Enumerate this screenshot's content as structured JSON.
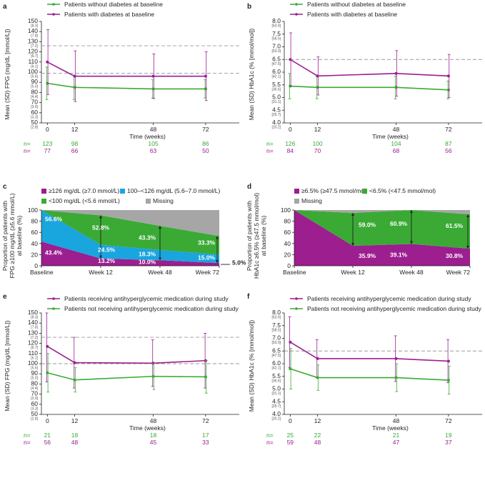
{
  "colors": {
    "green": "#3aaa35",
    "purple": "#9c1e8f",
    "blue": "#19a5de",
    "grey": "#a6a6a6",
    "dash": "#9a9a9a"
  },
  "chart_data": [
    {
      "panel": "a",
      "type": "line",
      "ylabel": "Mean (SD) FPG (mg/dL [mmol/L])",
      "xlabel": "Time (weeks)",
      "x": [
        0,
        12,
        48,
        72
      ],
      "ylim": [
        50,
        150
      ],
      "yticks": [
        50,
        60,
        70,
        80,
        90,
        100,
        110,
        120,
        130,
        140,
        150
      ],
      "ysub": [
        "[2.8]",
        "[3.3]",
        "[3.9]",
        "[4.4]",
        "[5.0]",
        "[5.6]",
        "[6.1]",
        "[6.7]",
        "[7.2]",
        "[7.8]",
        "[8.3]"
      ],
      "ref_lines": [
        126,
        99
      ],
      "series": [
        {
          "name": "Patients without diabetes at baseline",
          "color": "green",
          "values": [
            89,
            85,
            83.5,
            83.5
          ],
          "sd": [
            16,
            12,
            9,
            9
          ],
          "n_values": [
            "123",
            "98",
            "105",
            "86"
          ]
        },
        {
          "name": "Patients with diabetes at baseline",
          "color": "purple",
          "values": [
            110,
            96,
            96,
            96
          ],
          "sd": [
            32,
            25,
            22,
            24
          ],
          "n_values": [
            "77",
            "66",
            "63",
            "50"
          ]
        }
      ],
      "n_label": "n="
    },
    {
      "panel": "b",
      "type": "line",
      "ylabel": "Mean (SD) HbA1c (% [mmol/mol])",
      "xlabel": "Time (weeks)",
      "x": [
        0,
        12,
        48,
        72
      ],
      "ylim": [
        4.0,
        8.0
      ],
      "yticks": [
        4.0,
        4.5,
        5.0,
        5.5,
        6.0,
        6.5,
        7.0,
        7.5,
        8.0
      ],
      "ysub": [
        "[20.2]",
        "[25.7]",
        "[31.1]",
        "[36.6]",
        "[42.1]",
        "[47.5]",
        "[53.0]",
        "[58.5]",
        "[63.9]"
      ],
      "ref_lines": [
        6.5
      ],
      "series": [
        {
          "name": "Patients without diabetes at baseline",
          "color": "green",
          "values": [
            5.45,
            5.4,
            5.4,
            5.3
          ],
          "sd": [
            0.5,
            0.45,
            0.45,
            0.35
          ],
          "n_values": [
            "126",
            "100",
            "104",
            "87"
          ]
        },
        {
          "name": "Patients with diabetes at baseline",
          "color": "purple",
          "values": [
            6.5,
            5.85,
            5.95,
            5.85
          ],
          "sd": [
            1.05,
            0.75,
            0.9,
            0.85
          ],
          "n_values": [
            "84",
            "70",
            "68",
            "56"
          ]
        }
      ],
      "n_label": "n="
    },
    {
      "panel": "c",
      "type": "area",
      "ylabel": "Proportion of patients with FPG ≥100 mg/dL (≥5.6 mmol/L) at baseline (%)",
      "categories": [
        "Baseline",
        "Week 12",
        "Week 48",
        "Week 72"
      ],
      "ylim": [
        0,
        100
      ],
      "yticks": [
        0,
        20,
        40,
        60,
        80,
        100
      ],
      "series": [
        {
          "name": "≥126 mg/dL (≥7.0 mmol/L)",
          "color": "purple",
          "values": [
            43.4,
            13.2,
            10.0,
            5.0
          ]
        },
        {
          "name": "100–<126 mg/dL (5.6–7.0 mmol/L)",
          "color": "blue",
          "values": [
            56.6,
            24.5,
            18.3,
            15.0
          ]
        },
        {
          "name": "<100 mg/dL (<5.6 mmol/L)",
          "color": "green",
          "values": [
            0,
            52.8,
            43.3,
            33.3
          ]
        },
        {
          "name": "Missing",
          "color": "grey",
          "values": [
            0,
            9.5,
            28.4,
            46.7
          ]
        }
      ],
      "labels": {
        "purple": [
          "43.4%",
          "13.2%",
          "10.0%",
          "5.0%"
        ],
        "blue": [
          "56.6%",
          "24.5%",
          "18.3%",
          "15.0%"
        ],
        "green": [
          "52.8%",
          "43.3%",
          "33.3%"
        ]
      }
    },
    {
      "panel": "d",
      "type": "area",
      "ylabel": "Proportion of patients with HbA1c ≥6.5% (≥47.5 mmol/mol) at baseline (%)",
      "categories": [
        "Baseline",
        "Week 12",
        "Week 48",
        "Week 72"
      ],
      "ylim": [
        0,
        100
      ],
      "yticks": [
        0,
        20,
        40,
        60,
        80,
        100
      ],
      "series": [
        {
          "name": "≥6.5% (≥47.5 mmol/mol)",
          "color": "purple",
          "values": [
            100,
            35.9,
            39.1,
            30.8
          ]
        },
        {
          "name": "<6.5% (<47.5 mmol/mol)",
          "color": "green",
          "values": [
            0,
            59.0,
            60.9,
            61.5
          ]
        },
        {
          "name": "Missing",
          "color": "grey",
          "values": [
            0,
            5.1,
            0,
            7.7
          ]
        }
      ],
      "labels": {
        "purple": [
          "35.9%",
          "39.1%",
          "30.8%"
        ],
        "green": [
          "59.0%",
          "60.9%",
          "61.5%"
        ]
      }
    },
    {
      "panel": "e",
      "type": "line",
      "ylabel": "Mean (SD) FPG (mg/dL [mmol/L])",
      "xlabel": "Time (weeks)",
      "x": [
        0,
        12,
        48,
        72
      ],
      "ylim": [
        50,
        150
      ],
      "yticks": [
        50,
        60,
        70,
        80,
        90,
        100,
        110,
        120,
        130,
        140,
        150
      ],
      "ysub": [
        "[2.8]",
        "[3.3]",
        "[3.9]",
        "[4.4]",
        "[5.0]",
        "[5.6]",
        "[6.1]",
        "[6.7]",
        "[7.2]",
        "[7.8]",
        "[8.3]"
      ],
      "ref_lines": [
        126,
        100
      ],
      "series": [
        {
          "name": "Patients receiving antihyperglycemic medication during study",
          "color": "purple",
          "values": [
            117,
            101,
            100.5,
            103
          ],
          "sd": [
            35,
            25,
            23,
            27
          ],
          "n_values": [
            "56",
            "48",
            "45",
            "33"
          ]
        },
        {
          "name": "Patients not receiving antihyperglycemic medication during study",
          "color": "green",
          "values": [
            91,
            84,
            87.5,
            87
          ],
          "sd": [
            19,
            12,
            13,
            16
          ],
          "n_values": [
            "21",
            "18",
            "18",
            "17"
          ]
        }
      ],
      "n_label": "n="
    },
    {
      "panel": "f",
      "type": "line",
      "ylabel": "Mean (SD) HbA1c (% [mmol/mol])",
      "xlabel": "Time (weeks)",
      "x": [
        0,
        12,
        48,
        72
      ],
      "ylim": [
        4.0,
        8.0
      ],
      "yticks": [
        4.0,
        4.5,
        5.0,
        5.5,
        6.0,
        6.5,
        7.0,
        7.5,
        8.0
      ],
      "ysub": [
        "[20.2]",
        "[25.7]",
        "[31.1]",
        "[36.6]",
        "[42.1]",
        "[47.5]",
        "[53.0]",
        "[58.5]",
        "[63.9]"
      ],
      "ref_lines": [
        6.5
      ],
      "series": [
        {
          "name": "Patients receiving antihyperglycemic medication during study",
          "color": "purple",
          "values": [
            6.85,
            6.2,
            6.2,
            6.1
          ],
          "sd": [
            1.0,
            0.75,
            0.9,
            0.85
          ],
          "n_values": [
            "59",
            "48",
            "47",
            "37"
          ]
        },
        {
          "name": "Patients not receiving antihyperglycemic medication during study",
          "color": "green",
          "values": [
            5.8,
            5.45,
            5.45,
            5.35
          ],
          "sd": [
            0.8,
            0.5,
            0.55,
            0.55
          ],
          "n_values": [
            "25",
            "22",
            "21",
            "19"
          ]
        }
      ],
      "n_label": "n="
    }
  ]
}
